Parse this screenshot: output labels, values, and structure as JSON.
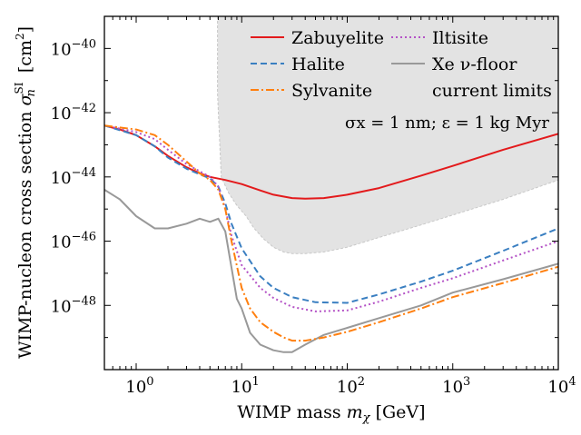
{
  "chart_data": {
    "type": "line",
    "xscale": "log",
    "yscale": "log",
    "xlim": [
      0.5,
      10000
    ],
    "ylim": [
      1e-50,
      1e-39
    ],
    "xlabel_text": "WIMP mass ",
    "xlabel_math": "m",
    "xlabel_sub": "χ",
    "xlabel_unit": " [GeV]",
    "ylabel_text": "WIMP-nucleon cross section ",
    "ylabel_math": "σ",
    "ylabel_sup": "SI",
    "ylabel_sub": "n",
    "ylabel_unit": " [cm",
    "ylabel_unit_sup": "2",
    "ylabel_unit_end": "]",
    "xticks": [
      {
        "value": 1,
        "base": "10",
        "exp": "0"
      },
      {
        "value": 10,
        "base": "10",
        "exp": "1"
      },
      {
        "value": 100,
        "base": "10",
        "exp": "2"
      },
      {
        "value": 1000,
        "base": "10",
        "exp": "3"
      },
      {
        "value": 10000,
        "base": "10",
        "exp": "4"
      }
    ],
    "yticks": [
      {
        "value": 1e-40,
        "base": "10",
        "exp": "−40"
      },
      {
        "value": 1e-42,
        "base": "10",
        "exp": "−42"
      },
      {
        "value": 1e-44,
        "base": "10",
        "exp": "−44"
      },
      {
        "value": 1e-46,
        "base": "10",
        "exp": "−46"
      },
      {
        "value": 1e-48,
        "base": "10",
        "exp": "−48"
      }
    ],
    "annotation": "σx = 1 nm; ε = 1 kg Myr",
    "legend_position": "top-right",
    "legend": [
      {
        "label": "Zabuyelite",
        "series": "zabuyelite"
      },
      {
        "label": "Iltisite",
        "series": "iltisite"
      },
      {
        "label": "Halite",
        "series": "halite"
      },
      {
        "label": "Xe ν-floor",
        "series": "xe_floor"
      },
      {
        "label": "Sylvanite",
        "series": "sylvanite"
      },
      {
        "label": "current limits",
        "series": "current_limits"
      }
    ],
    "series": [
      {
        "id": "current_limits",
        "name": "current limits",
        "style": "fill",
        "color": "#e3e3e3",
        "edge": "#c8c8c8",
        "x": [
          5.9,
          5.9,
          6.4,
          7.5,
          9,
          11,
          13,
          16,
          20,
          25,
          30,
          40,
          60,
          100,
          200,
          500,
          1000,
          3000,
          10000,
          10000
        ],
        "y": [
          1e-39,
          4e-42,
          1e-44,
          3.2e-45,
          1.3e-45,
          6e-46,
          2.6e-46,
          1.2e-46,
          6.5e-47,
          4.6e-47,
          4.1e-47,
          4.1e-47,
          4.6e-47,
          6.5e-47,
          1.3e-46,
          3.2e-46,
          6.5e-46,
          2e-45,
          8e-45,
          1e-39
        ]
      },
      {
        "id": "zabuyelite",
        "name": "Zabuyelite",
        "style": "solid",
        "color": "#e31a1c",
        "x": [
          0.5,
          0.7,
          1,
          1.5,
          2,
          3,
          4,
          5,
          7,
          10,
          15,
          20,
          30,
          40,
          60,
          100,
          200,
          500,
          1000,
          3000,
          10000
        ],
        "y": [
          4e-43,
          3e-43,
          2e-43,
          9e-44,
          4.5e-44,
          2e-44,
          1.3e-44,
          1e-44,
          8e-45,
          6e-45,
          3.8e-45,
          2.8e-45,
          2.2e-45,
          2.1e-45,
          2.2e-45,
          2.8e-45,
          4.5e-45,
          1.1e-44,
          2.2e-44,
          7e-44,
          2.2e-43
        ]
      },
      {
        "id": "iltisite",
        "name": "Iltisite",
        "style": "dotted",
        "color": "#b452c6",
        "x": [
          0.5,
          1,
          1.5,
          2,
          3,
          4,
          5,
          6,
          7,
          8,
          10,
          15,
          20,
          30,
          50,
          100,
          200,
          500,
          1000,
          3000,
          10000
        ],
        "y": [
          4e-43,
          2.5e-43,
          1.5e-43,
          7e-44,
          2.5e-44,
          1.5e-44,
          1e-44,
          5e-45,
          1e-45,
          1.5e-46,
          1.8e-47,
          3.5e-48,
          1.7e-48,
          9e-49,
          6.5e-49,
          7e-49,
          1.3e-48,
          3.5e-48,
          7e-48,
          2.5e-47,
          1e-46
        ]
      },
      {
        "id": "halite",
        "name": "Halite",
        "style": "dashed",
        "color": "#3a7fc1",
        "x": [
          0.5,
          1,
          1.5,
          2,
          3,
          4,
          5,
          6,
          7,
          8,
          10,
          15,
          20,
          30,
          50,
          100,
          200,
          500,
          1000,
          3000,
          10000
        ],
        "y": [
          4e-43,
          2e-43,
          9e-44,
          4e-44,
          1.8e-44,
          1.2e-44,
          9e-45,
          5e-45,
          1.5e-45,
          3.5e-46,
          6e-47,
          8e-48,
          3.5e-48,
          1.8e-48,
          1.25e-48,
          1.2e-48,
          2.2e-48,
          5.5e-48,
          1.2e-47,
          5e-47,
          2.5e-46
        ]
      },
      {
        "id": "xe_floor",
        "name": "Xe ν-floor",
        "style": "solid",
        "color": "#999999",
        "x": [
          0.5,
          0.7,
          1,
          1.5,
          2,
          3,
          4,
          5,
          6,
          7,
          8,
          9,
          10,
          12,
          15,
          20,
          25,
          30,
          40,
          60,
          100,
          200,
          500,
          1000,
          3000,
          10000
        ],
        "y": [
          4e-45,
          2e-45,
          6e-46,
          2.5e-46,
          2.5e-46,
          3.5e-46,
          5e-46,
          4e-46,
          5e-46,
          2e-46,
          1.5e-47,
          1.6e-48,
          8e-49,
          1.4e-49,
          6e-50,
          4e-50,
          3.5e-50,
          3.5e-50,
          6e-50,
          1.2e-49,
          2e-49,
          4e-49,
          1e-48,
          2.5e-48,
          6.5e-48,
          2e-47
        ]
      },
      {
        "id": "sylvanite",
        "name": "Sylvanite",
        "style": "dashdot",
        "color": "#ff7f0e",
        "x": [
          0.5,
          1,
          1.5,
          2,
          3,
          4,
          5,
          6,
          7,
          8,
          10,
          12,
          15,
          20,
          25,
          30,
          40,
          60,
          100,
          200,
          500,
          1000,
          3000,
          10000
        ],
        "y": [
          4e-43,
          3e-43,
          2e-43,
          1e-43,
          3e-44,
          1.3e-44,
          8e-45,
          4e-45,
          1e-45,
          1e-46,
          3.5e-48,
          8e-49,
          3e-49,
          1.5e-49,
          1e-49,
          8e-50,
          8e-50,
          1e-49,
          1.5e-49,
          3e-49,
          8e-49,
          1.8e-48,
          5e-48,
          1.6e-47
        ]
      }
    ]
  }
}
